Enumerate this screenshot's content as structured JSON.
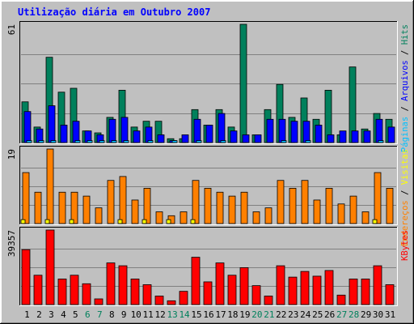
{
  "chart_data": {
    "type": "bar",
    "title": "Utilização diária em Outubro 2007",
    "categories": [
      "1",
      "2",
      "3",
      "4",
      "5",
      "6",
      "7",
      "8",
      "9",
      "10",
      "11",
      "12",
      "13",
      "14",
      "15",
      "16",
      "17",
      "18",
      "19",
      "20",
      "21",
      "22",
      "23",
      "24",
      "25",
      "26",
      "27",
      "28",
      "29",
      "30",
      "31"
    ],
    "weekend_days": [
      "6",
      "7",
      "13",
      "14",
      "20",
      "21",
      "27",
      "28"
    ],
    "panels": [
      {
        "id": "hits",
        "ymax_label": "61",
        "ylim": [
          0,
          61
        ],
        "legend": [
          {
            "label": "Hits",
            "color": "#00805c"
          },
          {
            "label": "Arquivos",
            "color": "#0000ff"
          },
          {
            "label": "Páginas",
            "color": "#00c0ff"
          }
        ],
        "series": [
          {
            "name": "Hits",
            "color": "#00805c",
            "values": [
              21,
              8,
              44,
              26,
              28,
              6,
              5,
              13,
              27,
              8,
              11,
              11,
              2,
              2,
              17,
              9,
              17,
              8,
              61,
              4,
              17,
              30,
              13,
              23,
              12,
              27,
              4,
              39,
              7,
              15,
              12
            ]
          },
          {
            "name": "Arquivos",
            "color": "#0000ff",
            "values": [
              16,
              7,
              19,
              9,
              11,
              6,
              4,
              12,
              13,
              6,
              8,
              4,
              1,
              4,
              12,
              9,
              15,
              6,
              4,
              4,
              12,
              12,
              11,
              11,
              9,
              4,
              6,
              6,
              6,
              12,
              8
            ]
          },
          {
            "name": "Páginas",
            "color": "#00c0ff",
            "values": [
              1,
              1,
              1,
              0,
              1,
              1,
              1,
              1,
              1,
              0,
              1,
              0,
              1,
              0,
              1,
              0,
              1,
              0,
              0,
              0,
              0,
              1,
              0,
              1,
              0,
              0,
              0,
              0,
              0,
              1,
              0
            ]
          }
        ]
      },
      {
        "id": "visits",
        "ymax_label": "19",
        "ylim": [
          0,
          19
        ],
        "legend": [
          {
            "label": "Visitas",
            "color": "#ffff00"
          },
          {
            "label": "Endereços",
            "color": "#ff8000"
          }
        ],
        "series": [
          {
            "name": "Endereços",
            "color": "#ff8000",
            "values": [
              13,
              8,
              19,
              8,
              8,
              7,
              4,
              11,
              12,
              6,
              9,
              3,
              2,
              3,
              11,
              9,
              8,
              7,
              8,
              3,
              4,
              11,
              9,
              11,
              6,
              9,
              5,
              7,
              3,
              13,
              9
            ]
          },
          {
            "name": "Visitas",
            "color": "#ffff00",
            "values": [
              1,
              0,
              1,
              0,
              1,
              0,
              0,
              0,
              1,
              0,
              1,
              0,
              1,
              0,
              1,
              0,
              0,
              0,
              0,
              0,
              0,
              0,
              0,
              0,
              0,
              0,
              0,
              0,
              0,
              1,
              0
            ]
          }
        ]
      },
      {
        "id": "kbytes",
        "ymax_label": "39357",
        "ylim": [
          0,
          39357
        ],
        "legend": [
          {
            "label": "KBytes",
            "color": "#ff0000"
          }
        ],
        "series": [
          {
            "name": "KBytes",
            "color": "#ff0000",
            "values": [
              29000,
              15500,
              39357,
              13500,
              15500,
              11000,
              3000,
              22000,
              20500,
              13500,
              10500,
              4500,
              2000,
              7000,
              25000,
              12000,
              22000,
              15500,
              19500,
              10000,
              4500,
              20500,
              14500,
              17500,
              15000,
              18000,
              5000,
              13500,
              13500,
              20500,
              10500
            ]
          }
        ]
      }
    ]
  }
}
